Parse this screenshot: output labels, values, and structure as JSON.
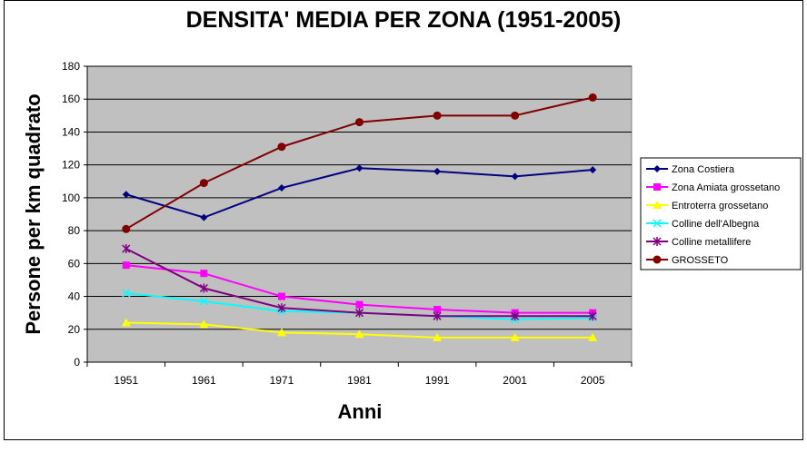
{
  "chart_data": {
    "type": "line",
    "title": "DENSITA' MEDIA PER ZONA (1951-2005)",
    "xlabel": "Anni",
    "ylabel": "Persone per km quadrato",
    "categories": [
      "1951",
      "1961",
      "1971",
      "1981",
      "1991",
      "2001",
      "2005"
    ],
    "ylim": [
      0,
      180
    ],
    "yticks": [
      0,
      20,
      40,
      60,
      80,
      100,
      120,
      140,
      160,
      180
    ],
    "grid": true,
    "legend": "right",
    "plot_background": "#c0c0c0",
    "series": [
      {
        "name": "Zona Costiera",
        "color": "#000080",
        "marker": "diamond",
        "values": [
          102,
          88,
          106,
          118,
          116,
          113,
          117
        ]
      },
      {
        "name": "Zona Amiata grossetano",
        "color": "#ff00ff",
        "marker": "square",
        "values": [
          59,
          54,
          40,
          35,
          32,
          30,
          30
        ]
      },
      {
        "name": "Entroterra grossetano",
        "color": "#ffff00",
        "marker": "triangle",
        "values": [
          24,
          23,
          18,
          17,
          15,
          15,
          15
        ]
      },
      {
        "name": "Colline dell'Albegna",
        "color": "#00ffff",
        "marker": "x",
        "values": [
          42,
          37,
          31,
          30,
          28,
          26,
          27
        ]
      },
      {
        "name": "Colline metallifere",
        "color": "#800080",
        "marker": "star",
        "values": [
          69,
          45,
          33,
          30,
          28,
          28,
          28
        ]
      },
      {
        "name": "GROSSETO",
        "color": "#800000",
        "marker": "circle",
        "values": [
          81,
          109,
          131,
          146,
          150,
          150,
          161
        ]
      }
    ]
  }
}
